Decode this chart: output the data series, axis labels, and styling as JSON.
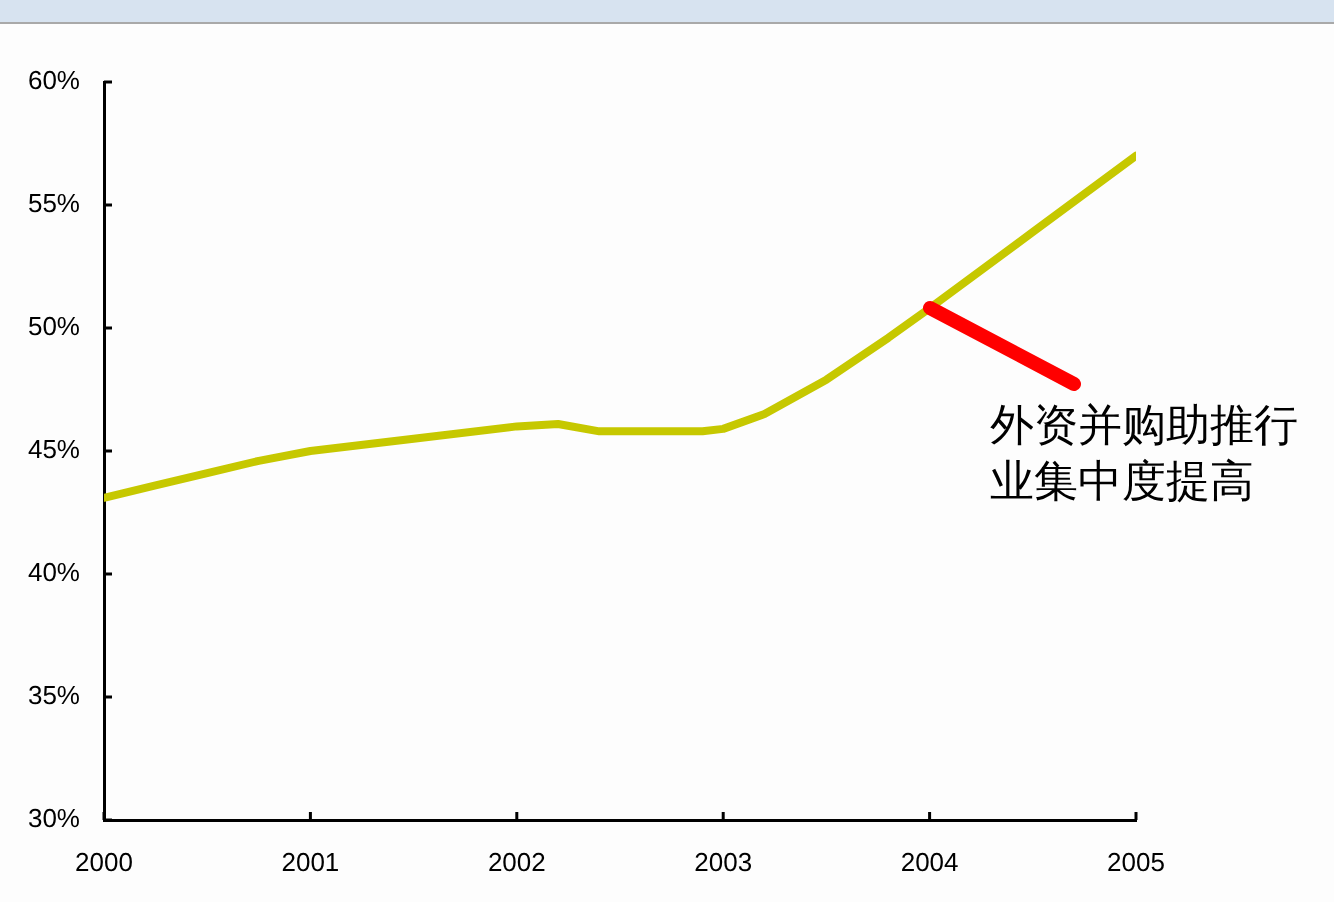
{
  "chart_data": {
    "type": "line",
    "x": [
      2000,
      2000.25,
      2000.5,
      2000.75,
      2001,
      2001.5,
      2002,
      2002.2,
      2002.4,
      2002.9,
      2003,
      2003.2,
      2003.5,
      2003.8,
      2004,
      2004.5,
      2005
    ],
    "values": [
      43.1,
      43.6,
      44.1,
      44.6,
      45.0,
      45.5,
      46.0,
      46.1,
      45.8,
      45.8,
      45.9,
      46.5,
      47.9,
      49.6,
      50.8,
      53.9,
      57.0
    ],
    "color": "#c6c800",
    "xlim": [
      2000,
      2005
    ],
    "xticks": [
      2000,
      2001,
      2002,
      2003,
      2004,
      2005
    ],
    "ylim": [
      30,
      60
    ],
    "yticks": [
      {
        "value": 30,
        "label": "30%"
      },
      {
        "value": 35,
        "label": "35%"
      },
      {
        "value": 40,
        "label": "40%"
      },
      {
        "value": 45,
        "label": "45%"
      },
      {
        "value": 50,
        "label": "50%"
      },
      {
        "value": 55,
        "label": "55%"
      },
      {
        "value": 60,
        "label": "60%"
      }
    ],
    "grid": false,
    "legend": false,
    "marker": "none",
    "line_style": "solid",
    "annotations": [
      {
        "text": "外资并购助推行业集中度提高",
        "x": 2004,
        "y": 50.8
      }
    ]
  }
}
